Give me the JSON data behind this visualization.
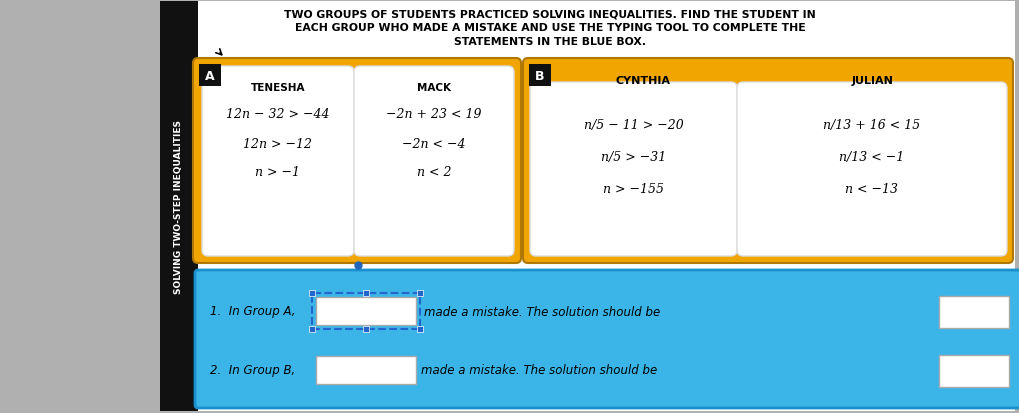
{
  "bg_color": "#b0b0b0",
  "page_bg": "#ffffff",
  "title_text_line1": "TWO GROUPS OF STUDENTS PRACTICED SOLVING INEQUALITIES. FIND THE STUDENT IN",
  "title_text_line2": "EACH GROUP WHO MADE A MISTAKE AND USE THE TYPING TOOL TO COMPLETE THE",
  "title_text_line3": "STATEMENTS IN THE BLUE BOX.",
  "sidebar_text": "SOLVING TWO-STEP INEQUALITIES",
  "sidebar_bg": "#111111",
  "sidebar_text_color": "#ffffff",
  "group_a_bg": "#f0a500",
  "group_b_bg": "#f0a500",
  "card_bg": "#ffffff",
  "group_a_label": "A",
  "group_b_label": "B",
  "tenesha_name": "TENESHA",
  "mack_name": "MACK",
  "cynthia_name": "CYNTHIA",
  "julian_name": "JULIAN",
  "tenesha_lines": [
    "12n − 32 > −44",
    "12n > −12",
    "n > −1"
  ],
  "mack_lines": [
    "−2n + 23 < 19",
    "−2n < −4",
    "n < 2"
  ],
  "cynthia_lines": [
    "n/5 − 11 > −20",
    "n/5 > −31",
    "n > −155"
  ],
  "julian_lines": [
    "n/13 + 16 < 15",
    "n/13 < −1",
    "n < −13"
  ],
  "blue_box_bg": "#3bb5e8",
  "statement1_pre": "1.  In Group A,",
  "statement1_mid": "made a mistake. The solution should be",
  "statement2_pre": "2.  In Group B,",
  "statement2_mid": "made a mistake. The solution should be"
}
